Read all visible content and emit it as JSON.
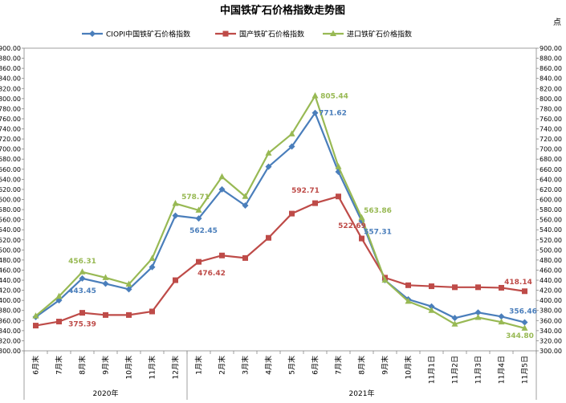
{
  "chart_data": {
    "type": "line",
    "title": "中国铁矿石价格指数走势图",
    "unit_label": "点",
    "categories": [
      "6月末",
      "7月末",
      "8月末",
      "9月末",
      "10月末",
      "11月末",
      "12月末",
      "1月末",
      "2月末",
      "3月末",
      "4月末",
      "5月末",
      "6月末",
      "7月末",
      "8月末",
      "9月末",
      "10月末",
      "11月1日",
      "11月2日",
      "11月3日",
      "11月4日",
      "11月5日"
    ],
    "year_groups": [
      {
        "label": "2020年",
        "start": 0,
        "end": 6
      },
      {
        "label": "2021年",
        "start": 7,
        "end": 21
      }
    ],
    "ylim": [
      300,
      900
    ],
    "ytick_step": 20,
    "legend_position": "top",
    "series": [
      {
        "name": "CIOPI中国铁矿石价格指数",
        "color": "#4a7ebb",
        "marker": "diamond",
        "values": [
          367,
          400,
          443.45,
          433,
          422,
          466,
          568,
          562.45,
          620,
          588,
          665,
          705,
          771.62,
          655,
          557.31,
          440,
          402,
          388,
          365,
          376,
          368,
          356.46
        ]
      },
      {
        "name": "国产铁矿石价格指数",
        "color": "#be4b48",
        "marker": "square",
        "values": [
          350,
          358,
          375.39,
          371,
          371,
          378,
          440,
          476.42,
          489,
          484,
          524,
          572,
          592.71,
          606,
          522.69,
          445,
          430,
          428,
          426,
          426,
          425,
          418.14
        ]
      },
      {
        "name": "进口铁矿石价格指数",
        "color": "#98b954",
        "marker": "triangle",
        "values": [
          369,
          408,
          456.31,
          445,
          432,
          483,
          592,
          578.71,
          645,
          606,
          692,
          730,
          805.44,
          665,
          563.86,
          440,
          398,
          380,
          353,
          366,
          357,
          344.8
        ]
      }
    ],
    "data_labels": [
      {
        "series": 0,
        "index": 2,
        "text": "443.45"
      },
      {
        "series": 0,
        "index": 7,
        "text": "562.45"
      },
      {
        "series": 0,
        "index": 12,
        "text": "771.62"
      },
      {
        "series": 0,
        "index": 14,
        "text": "557.31"
      },
      {
        "series": 0,
        "index": 21,
        "text": "356.46"
      },
      {
        "series": 1,
        "index": 2,
        "text": "375.39"
      },
      {
        "series": 1,
        "index": 7,
        "text": "476.42"
      },
      {
        "series": 1,
        "index": 12,
        "text": "592.71"
      },
      {
        "series": 1,
        "index": 14,
        "text": "522.69"
      },
      {
        "series": 1,
        "index": 21,
        "text": "418.14"
      },
      {
        "series": 2,
        "index": 2,
        "text": "456.31"
      },
      {
        "series": 2,
        "index": 7,
        "text": "578.71"
      },
      {
        "series": 2,
        "index": 12,
        "text": "805.44"
      },
      {
        "series": 2,
        "index": 14,
        "text": "563.86"
      },
      {
        "series": 2,
        "index": 21,
        "text": "344.80"
      }
    ]
  }
}
